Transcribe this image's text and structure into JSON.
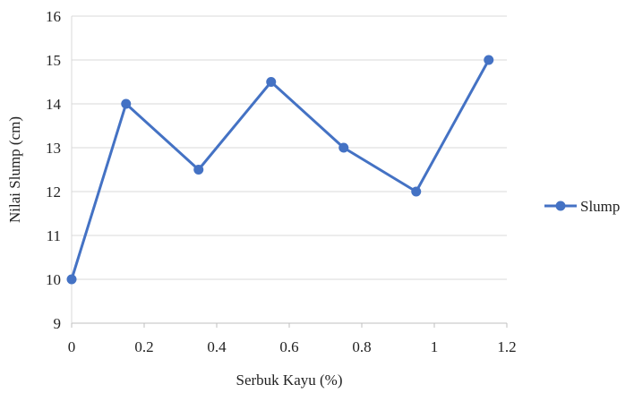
{
  "chart_data": {
    "type": "line",
    "title": "",
    "xlabel": "Serbuk Kayu (%)",
    "ylabel": "Nilai Slump (cm)",
    "xlim": [
      0,
      1.2
    ],
    "ylim": [
      9,
      16
    ],
    "xticks": [
      0,
      0.2,
      0.4,
      0.6,
      0.8,
      1,
      1.2
    ],
    "yticks": [
      9,
      10,
      11,
      12,
      13,
      14,
      15,
      16
    ],
    "xtick_labels": [
      "0",
      "0.2",
      "0.4",
      "0.6",
      "0.8",
      "1",
      "1.2"
    ],
    "ytick_labels": [
      "9",
      "10",
      "11",
      "12",
      "13",
      "14",
      "15",
      "16"
    ],
    "grid": "horizontal",
    "legend_position": "right",
    "series": [
      {
        "name": "Slump",
        "color": "#4472C4",
        "marker": "circle",
        "x": [
          0,
          0.15,
          0.35,
          0.55,
          0.75,
          0.95,
          1.15
        ],
        "y": [
          10,
          14,
          12.5,
          14.5,
          13,
          12,
          15
        ]
      }
    ]
  }
}
